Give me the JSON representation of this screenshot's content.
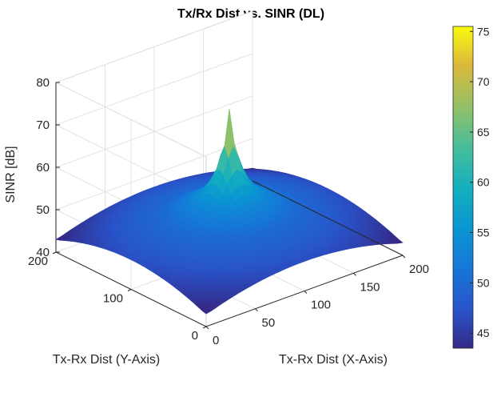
{
  "chart_data": {
    "type": "surface",
    "title": "Tx/Rx Dist vs. SINR (DL)",
    "xlabel": "Tx-Rx Dist (X-Axis)",
    "ylabel": "Tx-Rx Dist (Y-Axis)",
    "zlabel": "SINR [dB]",
    "xlim": [
      0,
      200
    ],
    "ylim": [
      0,
      200
    ],
    "zlim": [
      40,
      80
    ],
    "xticks": [
      "0",
      "50",
      "100",
      "150",
      "200"
    ],
    "yticks": [
      "0",
      "100",
      "200"
    ],
    "zticks": [
      "40",
      "50",
      "60",
      "70",
      "80"
    ],
    "peak": {
      "x": 100,
      "y": 100,
      "z": 75
    },
    "corner_sinr": 43,
    "mid_edge_sinr": 46,
    "grid": true,
    "colormap": "parula",
    "colorbar": {
      "range": [
        43.5,
        75.5
      ],
      "ticks": [
        "45",
        "50",
        "55",
        "60",
        "65",
        "70",
        "75"
      ]
    }
  }
}
